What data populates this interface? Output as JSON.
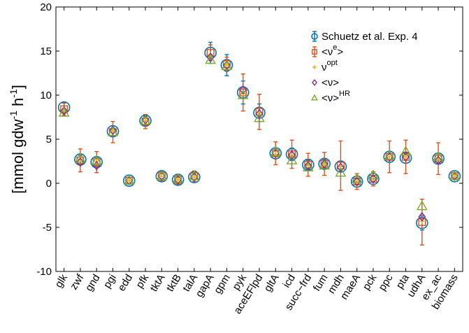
{
  "chart_data": {
    "type": "scatter",
    "ylabel": {
      "pre": "[mmol gdw",
      "sup1": "-1",
      "mid": " h",
      "sup2": "-1",
      "post": "]"
    },
    "ylim": [
      -10,
      20
    ],
    "yticks": [
      -10,
      -5,
      0,
      5,
      10,
      15,
      20
    ],
    "grid": false,
    "legend_position": "top-right",
    "categories": [
      "glk",
      "zwf",
      "gnd",
      "pgi",
      "edd",
      "pfk",
      "tktA",
      "tktB",
      "talA",
      "gapA",
      "gpm",
      "pyk",
      "aceEFlpd",
      "gltA",
      "icd",
      "succ−frd",
      "fum",
      "mdh",
      "maeA",
      "pck",
      "ppc",
      "pta",
      "udhA",
      "ex_ac",
      "biomass"
    ],
    "series": [
      {
        "name": "Schuetz et al. Exp. 4",
        "legend": {
          "text": "Schuetz et al. Exp. 4"
        },
        "color": "#0072BD",
        "marker": "circle",
        "values": [
          8.6,
          2.7,
          2.4,
          5.9,
          0.3,
          7.1,
          0.8,
          0.4,
          0.7,
          14.8,
          13.4,
          10.3,
          8.0,
          3.4,
          3.3,
          2.1,
          2.2,
          1.9,
          0.2,
          0.5,
          3.0,
          2.9,
          -4.5,
          2.8,
          0.8
        ],
        "err": [
          0.5,
          0.5,
          0.5,
          0.6,
          0.3,
          0.5,
          0.3,
          0.3,
          0.3,
          1.2,
          1.2,
          1.3,
          1.0,
          0.6,
          0.7,
          0.5,
          0.5,
          0.5,
          0.3,
          0.3,
          0.6,
          0.6,
          0.8,
          0.6,
          0.2
        ]
      },
      {
        "name": "<ν^e>",
        "legend": {
          "text": "<ν",
          "sup": "e",
          "post": ">"
        },
        "color": "#D95319",
        "marker": "square",
        "values": [
          8.4,
          2.6,
          2.4,
          5.8,
          0.3,
          7.0,
          0.8,
          0.4,
          0.8,
          14.8,
          13.5,
          10.3,
          8.1,
          3.4,
          3.3,
          2.1,
          2.2,
          2.0,
          0.2,
          0.5,
          3.0,
          3.0,
          -4.4,
          2.8,
          0.8
        ],
        "err": [
          0.7,
          1.3,
          1.2,
          1.2,
          0.4,
          0.8,
          0.5,
          0.5,
          0.6,
          0.9,
          0.8,
          2.1,
          2.0,
          1.3,
          1.6,
          1.3,
          1.3,
          2.8,
          0.9,
          0.8,
          1.8,
          1.9,
          2.6,
          1.8,
          0.4
        ]
      },
      {
        "name": "ν^opt",
        "legend": {
          "text": "ν",
          "sup": "opt",
          "post": ""
        },
        "color": "#EDB120",
        "marker": "plus",
        "values": [
          8.3,
          2.7,
          2.5,
          5.9,
          0.3,
          7.1,
          0.8,
          0.4,
          0.7,
          14.6,
          13.4,
          10.2,
          8.0,
          3.3,
          3.2,
          2.1,
          2.1,
          1.9,
          0.2,
          0.5,
          3.0,
          3.0,
          -4.3,
          2.8,
          0.8
        ]
      },
      {
        "name": "<ν>",
        "legend": {
          "text": "<ν>",
          "sup": "",
          "post": ""
        },
        "color": "#7E2F8E",
        "marker": "diamond",
        "values": [
          8.2,
          2.4,
          2.0,
          6.0,
          0.3,
          7.2,
          0.8,
          0.4,
          0.7,
          14.3,
          13.4,
          10.6,
          7.9,
          3.4,
          3.2,
          2.0,
          2.2,
          1.8,
          0.2,
          0.5,
          3.0,
          3.0,
          -3.8,
          2.6,
          0.8
        ]
      },
      {
        "name": "<ν>^HR",
        "legend": {
          "text": "<ν>",
          "sup": "HR",
          "post": ""
        },
        "color": "#77AC30",
        "marker": "triangle",
        "values": [
          8.0,
          2.8,
          2.5,
          5.8,
          0.3,
          7.1,
          0.8,
          0.5,
          0.8,
          14.0,
          13.3,
          10.0,
          7.4,
          3.5,
          2.6,
          1.8,
          2.0,
          1.2,
          0.5,
          0.9,
          3.1,
          3.6,
          -2.6,
          3.0,
          0.8
        ]
      }
    ]
  }
}
